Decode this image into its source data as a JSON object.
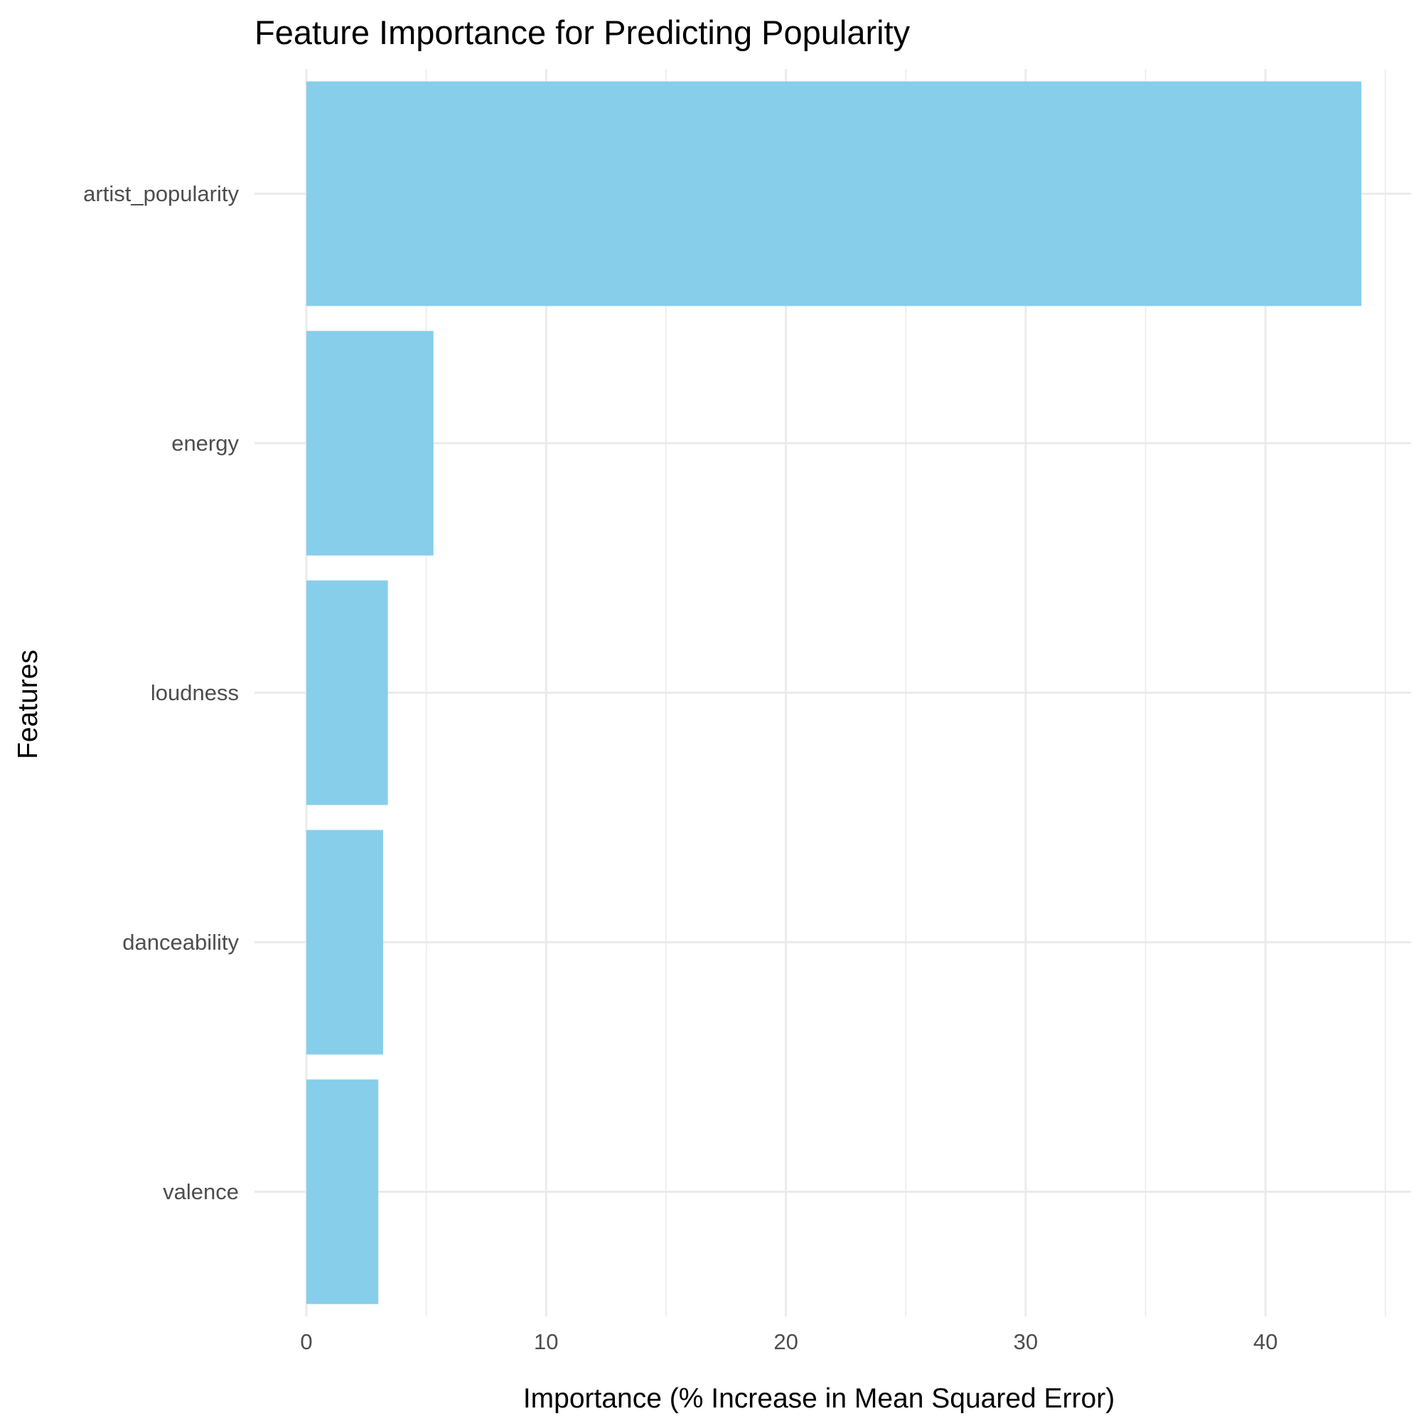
{
  "chart_data": {
    "type": "bar",
    "orientation": "horizontal",
    "title": "Feature Importance for Predicting Popularity",
    "xlabel": "Importance (% Increase in Mean Squared Error)",
    "ylabel": "Features",
    "categories": [
      "artist_popularity",
      "energy",
      "loudness",
      "danceability",
      "valence"
    ],
    "values": [
      44.0,
      5.3,
      3.4,
      3.2,
      3.0
    ],
    "xlim": [
      0,
      46
    ],
    "x_ticks": [
      0,
      10,
      20,
      30,
      40
    ],
    "x_tick_labels": [
      "0",
      "10",
      "20",
      "30",
      "40"
    ],
    "bar_color": "#87CEEB",
    "grid": true,
    "gridline_color": "#ebebeb",
    "background": "#ffffff",
    "legend": "none"
  }
}
